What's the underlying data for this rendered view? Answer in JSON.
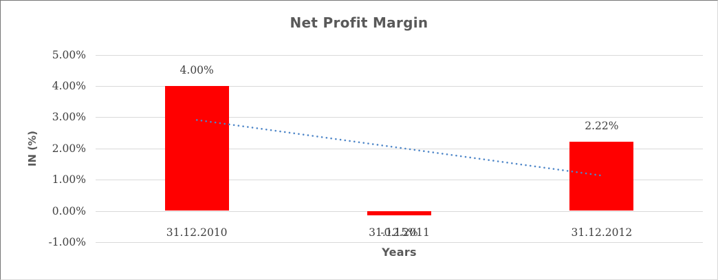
{
  "chart_data": {
    "type": "bar",
    "title": "Net Profit Margin",
    "xlabel": "Years",
    "ylabel": "IN (%)",
    "categories": [
      "31.12.2010",
      "31.12.2011",
      "31.12.2012"
    ],
    "values": [
      4.0,
      -0.15,
      2.22
    ],
    "data_labels": [
      "4.00%",
      "-0.15%",
      "2.22%"
    ],
    "y_tick_labels": [
      "5.00%",
      "4.00%",
      "3.00%",
      "2.00%",
      "1.00%",
      "0.00%",
      "-1.00%"
    ],
    "ylim": [
      -1,
      5
    ],
    "y_step": 1,
    "grid": true,
    "legend": "none",
    "bar_color": "#FF0000",
    "gridline_color": "#D9D9D9",
    "label_color": "#3F3F3F",
    "title_color": "#595959",
    "trendline": {
      "type": "linear",
      "style": "dotted",
      "color": "#4E86C8",
      "start_value": 2.91,
      "end_value": 1.13
    }
  }
}
